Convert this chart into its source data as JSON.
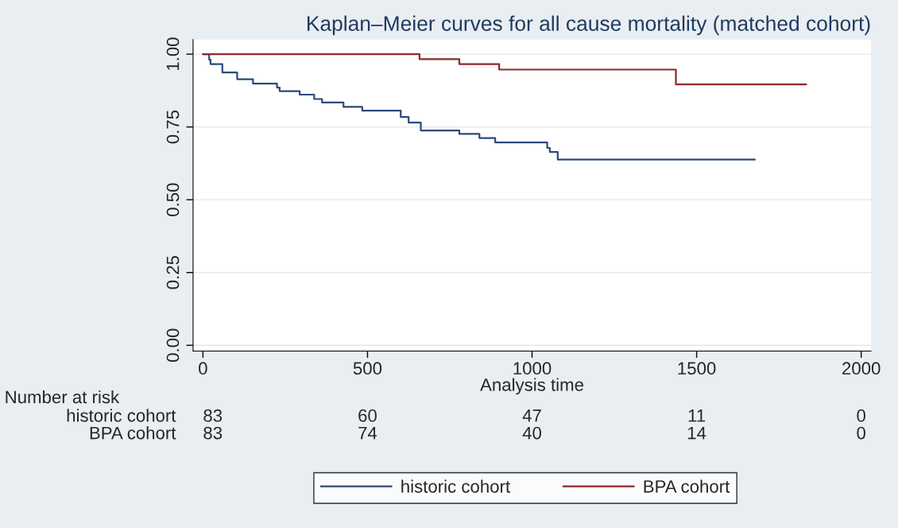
{
  "chart_data": {
    "type": "step",
    "title": "Kaplan–Meier curves for all cause mortality (matched cohort)",
    "xlabel": "Analysis time",
    "xlim": [
      -30,
      2030
    ],
    "xticks": [
      0,
      500,
      1000,
      1500,
      2000
    ],
    "ylim": [
      -0.02,
      1.05
    ],
    "yticks": [
      {
        "value": 0,
        "label": "0.00"
      },
      {
        "value": 0.25,
        "label": "0.25"
      },
      {
        "value": 0.5,
        "label": "0.50"
      },
      {
        "value": 0.75,
        "label": "0.75"
      },
      {
        "value": 1,
        "label": "1.00"
      }
    ],
    "grid": "y",
    "legend": "bottom",
    "series": [
      {
        "name": "historic cohort",
        "color": "#2c4a7a",
        "x": [
          0,
          19,
          23,
          59,
          104,
          152,
          225,
          233,
          294,
          338,
          362,
          427,
          484,
          601,
          625,
          662,
          779,
          840,
          888,
          1046,
          1054,
          1078,
          1677
        ],
        "values": [
          1.0,
          0.981,
          0.966,
          0.937,
          0.914,
          0.899,
          0.885,
          0.873,
          0.861,
          0.846,
          0.834,
          0.819,
          0.806,
          0.784,
          0.765,
          0.738,
          0.726,
          0.712,
          0.697,
          0.678,
          0.664,
          0.638,
          0.638
        ]
      },
      {
        "name": "BPA cohort",
        "color": "#8b2a2a",
        "x": [
          0,
          658,
          779,
          900,
          1437,
          1833
        ],
        "values": [
          1.0,
          0.983,
          0.966,
          0.947,
          0.896,
          0.896
        ]
      }
    ],
    "annotations": [
      "Number at risk",
      "historic cohort",
      "83",
      "60",
      "47",
      "11",
      "0",
      "BPA cohort",
      "83",
      "74",
      "40",
      "14",
      "0"
    ]
  }
}
